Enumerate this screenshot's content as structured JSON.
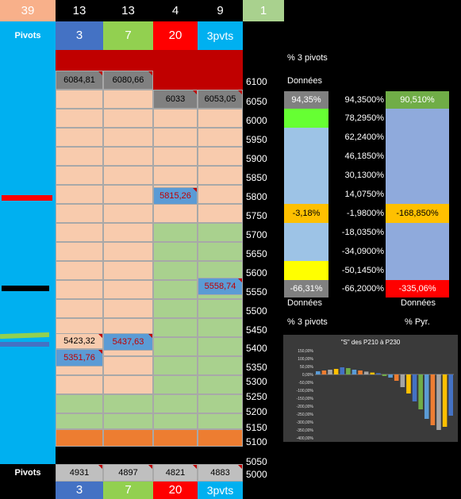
{
  "header": {
    "counts": [
      "39",
      "13",
      "13",
      "4",
      "9",
      "1"
    ],
    "pivots_label": "Pivots",
    "columns": [
      "3",
      "7",
      "20",
      "3pvts"
    ]
  },
  "footer": {
    "pivots_label": "Pivots",
    "values": [
      "4931",
      "4897",
      "4821",
      "4883"
    ],
    "columns": [
      "3",
      "7",
      "20",
      "3pvts"
    ]
  },
  "levels": [
    "6100",
    "6050",
    "6000",
    "5950",
    "5900",
    "5850",
    "5800",
    "5750",
    "5700",
    "5650",
    "5600",
    "5550",
    "5500",
    "5450",
    "5400",
    "5350",
    "5300",
    "5250",
    "5200",
    "5150",
    "5100",
    "5050",
    "5000"
  ],
  "markers": {
    "r4": [
      "6084,81",
      "6080,66",
      "",
      ""
    ],
    "r5": [
      "",
      "",
      "6033",
      "6053,05"
    ],
    "r10": [
      "",
      "",
      "5815,26",
      ""
    ],
    "r15": [
      "",
      "",
      "",
      "5558,74"
    ],
    "r18": [
      "5423,32",
      "5437,63",
      "",
      ""
    ],
    "r19": [
      "5351,76",
      "",
      "",
      ""
    ]
  },
  "right_panel": {
    "top_label": "% 3 pivots",
    "donnees_label": "Données",
    "left_col": [
      "94,35%",
      "",
      "",
      "",
      "",
      "",
      "-3,18%",
      "",
      "",
      "",
      "",
      "-66,31%"
    ],
    "mid_col": [
      "94,3500%",
      "78,2950%",
      "62,2400%",
      "46,1850%",
      "30,1300%",
      "14,0750%",
      "-1,9800%",
      "-18,0350%",
      "-34,0900%",
      "-50,1450%",
      "-66,2000%"
    ],
    "right_col": [
      "90,510%",
      "",
      "",
      "",
      "",
      "",
      "-168,850%",
      "",
      "",
      "",
      "",
      "-335,06%"
    ],
    "bottom_left_label": "Données",
    "bottom_right_label": "Données",
    "pct_label_left": "% 3 pivots",
    "pct_label_right": "% Pyr."
  },
  "chart_data": {
    "type": "bar",
    "title": "\"S\" des P210 à P230",
    "ylim": [
      -400,
      150
    ],
    "yticks": [
      "150,00%",
      "100,00%",
      "50,00%",
      "0,00%",
      "-50,00%",
      "-100,00%",
      "-150,00%",
      "-200,00%",
      "-250,00%",
      "-300,00%",
      "-350,00%",
      "-400,00%"
    ],
    "values": [
      20,
      25,
      30,
      35,
      45,
      40,
      30,
      25,
      18,
      12,
      8,
      -10,
      -20,
      -40,
      -80,
      -120,
      -170,
      -220,
      -280,
      -320,
      -350,
      -330,
      -260
    ],
    "colors": [
      "#5b9bd5",
      "#ed7d31",
      "#a5a5a5",
      "#ffc000",
      "#4472c4",
      "#70ad47"
    ]
  }
}
